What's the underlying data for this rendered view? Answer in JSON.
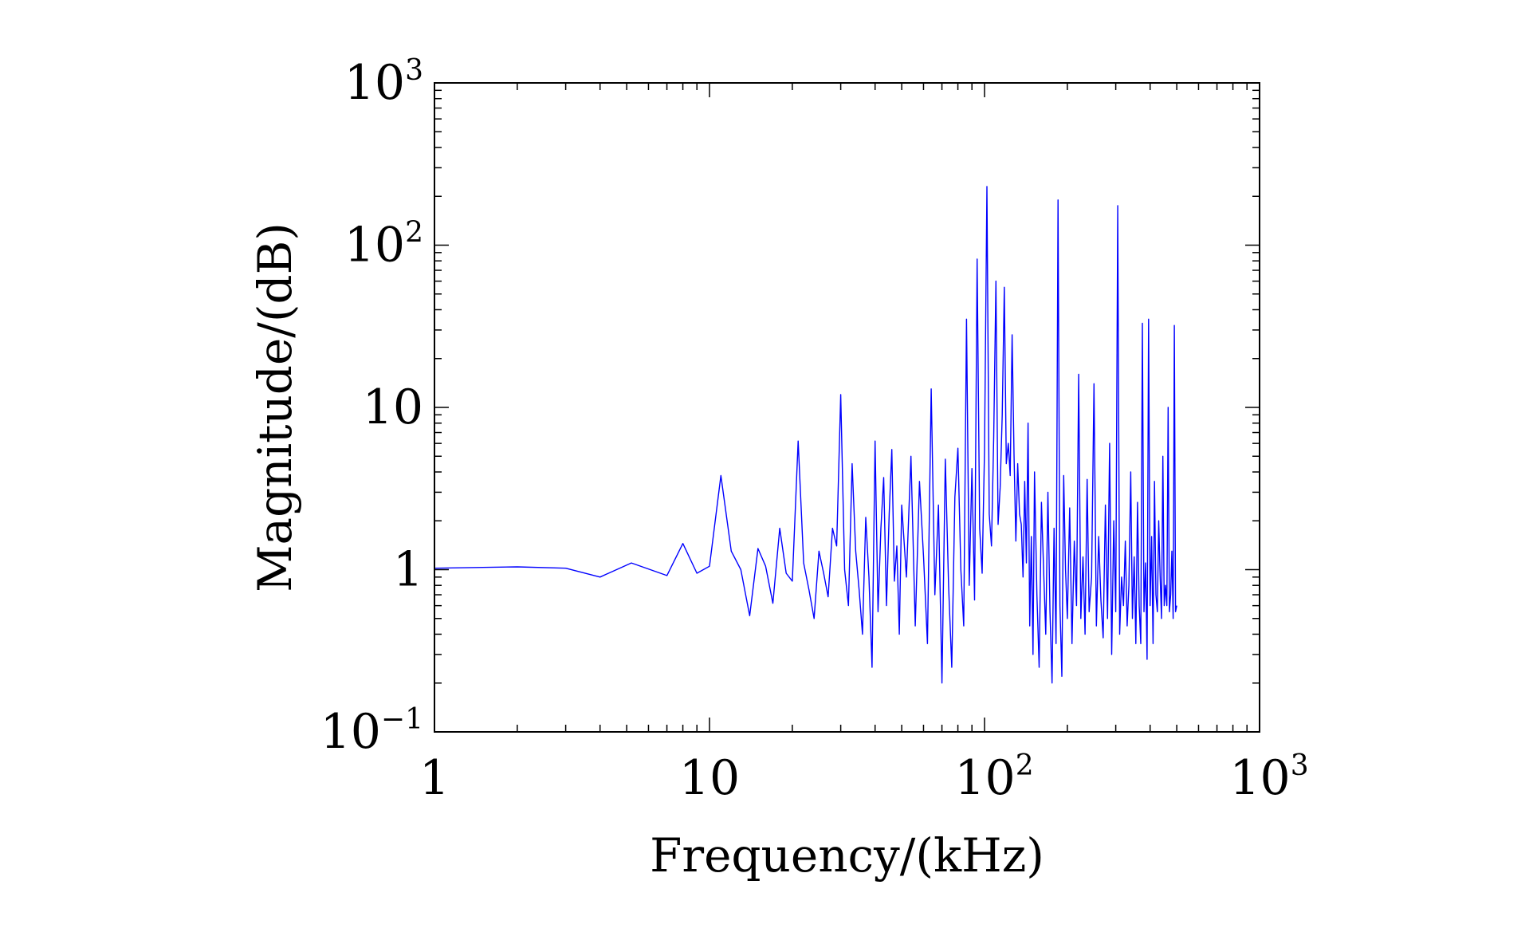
{
  "chart_data": {
    "type": "line",
    "xlabel": "Frequency/(kHz)",
    "ylabel": "Magnitude/(dB)",
    "xscale": "log",
    "yscale": "log",
    "xlim": [
      1,
      1000
    ],
    "ylim": [
      0.1,
      1000
    ],
    "grid": false,
    "legend": "none",
    "line_color": "#0000ff",
    "x_ticks": [
      {
        "value": 1,
        "base": "1",
        "exp": ""
      },
      {
        "value": 10,
        "base": "10",
        "exp": ""
      },
      {
        "value": 100,
        "base": "10",
        "exp": "2"
      },
      {
        "value": 1000,
        "base": "10",
        "exp": "3"
      }
    ],
    "y_ticks": [
      {
        "value": 0.1,
        "base": "10",
        "exp": "−1"
      },
      {
        "value": 1,
        "base": "1",
        "exp": ""
      },
      {
        "value": 10,
        "base": "10",
        "exp": ""
      },
      {
        "value": 100,
        "base": "10",
        "exp": "2"
      },
      {
        "value": 1000,
        "base": "10",
        "exp": "3"
      }
    ],
    "series": [
      {
        "x": [
          1,
          2,
          3,
          4,
          5.2,
          7,
          8,
          9,
          10,
          11,
          12,
          13,
          14,
          15,
          16,
          17,
          18,
          19,
          20,
          21,
          22,
          23,
          24,
          25,
          26,
          27,
          28,
          29,
          30,
          31,
          32,
          33,
          34,
          35,
          36,
          37,
          38,
          39,
          40,
          41,
          42,
          43,
          44,
          45,
          46,
          47,
          48,
          49,
          50,
          52,
          54,
          56,
          58,
          60,
          62,
          64,
          66,
          68,
          70,
          72,
          74,
          76,
          78,
          80,
          82,
          84,
          86,
          88,
          90,
          92,
          94,
          96,
          98,
          100,
          102,
          104,
          106,
          108,
          110,
          112,
          114,
          116,
          118,
          120,
          122,
          124,
          126,
          128,
          130,
          132,
          134,
          136,
          138,
          140,
          142,
          144,
          146,
          148,
          150,
          152,
          155,
          158,
          161,
          164,
          167,
          170,
          173,
          176,
          179,
          182,
          185,
          188,
          191,
          194,
          197,
          200,
          204,
          208,
          212,
          216,
          220,
          224,
          228,
          232,
          236,
          240,
          245,
          250,
          255,
          260,
          265,
          270,
          275,
          280,
          285,
          290,
          295,
          300,
          305,
          310,
          315,
          320,
          325,
          330,
          335,
          340,
          345,
          350,
          355,
          360,
          365,
          370,
          375,
          380,
          385,
          390,
          395,
          400,
          405,
          410,
          415,
          420,
          425,
          430,
          435,
          440,
          445,
          450,
          455,
          460,
          465,
          470,
          475,
          480,
          485,
          490,
          495,
          500
        ],
        "y": [
          1.02,
          1.04,
          1.02,
          0.9,
          1.1,
          0.92,
          1.45,
          0.95,
          1.05,
          3.8,
          1.3,
          1.0,
          0.52,
          1.35,
          1.05,
          0.62,
          1.8,
          0.95,
          0.85,
          6.2,
          1.1,
          0.75,
          0.5,
          1.3,
          0.95,
          0.68,
          1.8,
          1.4,
          12.0,
          1.0,
          0.6,
          4.5,
          1.3,
          0.75,
          0.4,
          2.1,
          0.9,
          0.25,
          6.2,
          0.55,
          1.8,
          3.7,
          0.6,
          2.2,
          5.5,
          0.85,
          1.4,
          0.4,
          2.5,
          0.9,
          5.0,
          0.45,
          3.5,
          1.2,
          0.35,
          13.0,
          0.7,
          2.5,
          0.2,
          4.8,
          0.8,
          0.25,
          2.8,
          5.6,
          1.0,
          0.45,
          35.0,
          0.8,
          4.2,
          0.65,
          82.0,
          1.8,
          0.95,
          5.5,
          230.0,
          2.2,
          1.4,
          6.5,
          60.0,
          1.9,
          3.2,
          9.0,
          55.0,
          4.5,
          6.0,
          3.8,
          28.0,
          5.1,
          1.5,
          4.5,
          2.2,
          1.9,
          0.9,
          3.5,
          1.1,
          8.0,
          0.45,
          1.6,
          0.3,
          4.0,
          0.7,
          0.25,
          2.6,
          1.0,
          0.4,
          3.0,
          0.55,
          0.2,
          1.8,
          0.35,
          190.0,
          0.6,
          0.22,
          3.8,
          1.0,
          0.5,
          2.4,
          0.35,
          1.5,
          0.6,
          16.0,
          0.5,
          1.2,
          0.4,
          3.6,
          0.55,
          0.9,
          14.0,
          0.45,
          1.6,
          0.65,
          0.38,
          2.5,
          0.5,
          6.0,
          0.3,
          2.0,
          0.55,
          175.0,
          0.4,
          0.9,
          0.6,
          1.5,
          0.45,
          0.8,
          4.0,
          0.5,
          1.2,
          0.35,
          2.6,
          0.6,
          0.35,
          33.0,
          0.55,
          1.1,
          0.28,
          35.0,
          0.6,
          1.6,
          0.35,
          3.5,
          0.7,
          0.55,
          2.0,
          0.9,
          0.5,
          5.0,
          0.6,
          0.8,
          0.6,
          10.0,
          0.55,
          0.7,
          1.3,
          0.5,
          32.0,
          0.55,
          0.6
        ]
      }
    ]
  }
}
